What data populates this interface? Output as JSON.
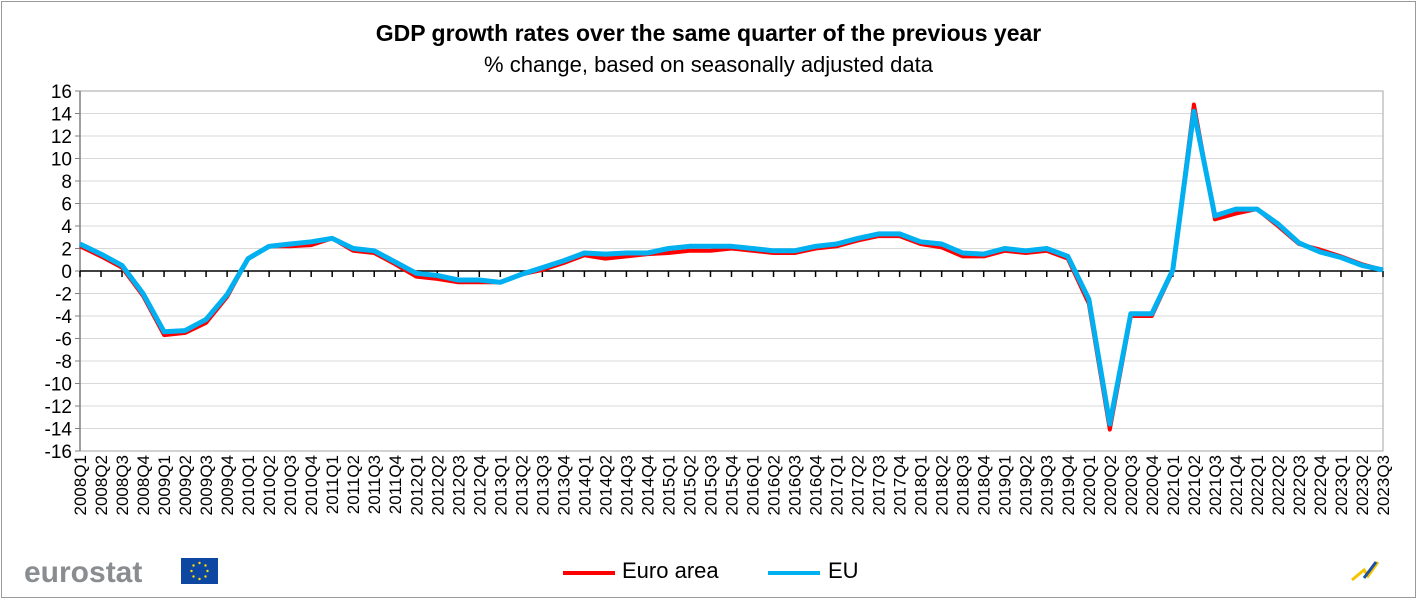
{
  "chart_data": {
    "type": "line",
    "title": "GDP growth rates over the same quarter of the previous year",
    "subtitle": "% change, based on seasonally adjusted data",
    "xlabel": "",
    "ylabel": "",
    "ylim": [
      -16,
      16
    ],
    "yticks": [
      "16",
      "14",
      "12",
      "10",
      "8",
      "6",
      "4",
      "2",
      "0",
      "-2",
      "-4",
      "-6",
      "-8",
      "-10",
      "-12",
      "-14",
      "-16"
    ],
    "grid": true,
    "legend_position": "bottom",
    "x": [
      "2008Q1",
      "2008Q2",
      "2008Q3",
      "2008Q4",
      "2009Q1",
      "2009Q2",
      "2009Q3",
      "2009Q4",
      "2010Q1",
      "2010Q2",
      "2010Q3",
      "2010Q4",
      "2011Q1",
      "2011Q2",
      "2011Q3",
      "2011Q4",
      "2012Q1",
      "2012Q2",
      "2012Q3",
      "2012Q4",
      "2013Q1",
      "2013Q2",
      "2013Q3",
      "2013Q4",
      "2014Q1",
      "2014Q2",
      "2014Q3",
      "2014Q4",
      "2015Q1",
      "2015Q2",
      "2015Q3",
      "2015Q4",
      "2016Q1",
      "2016Q2",
      "2016Q3",
      "2016Q4",
      "2017Q1",
      "2017Q2",
      "2017Q3",
      "2017Q4",
      "2018Q1",
      "2018Q2",
      "2018Q3",
      "2018Q4",
      "2019Q1",
      "2019Q2",
      "2019Q3",
      "2019Q4",
      "2020Q1",
      "2020Q2",
      "2020Q3",
      "2020Q4",
      "2021Q1",
      "2021Q2",
      "2021Q3",
      "2021Q4",
      "2022Q1",
      "2022Q2",
      "2022Q3",
      "2022Q4",
      "2023Q1",
      "2023Q2",
      "2023Q3"
    ],
    "series": [
      {
        "name": "Euro area",
        "color": "#ff0000",
        "values": [
          2.2,
          1.3,
          0.3,
          -2.2,
          -5.7,
          -5.5,
          -4.6,
          -2.3,
          1.1,
          2.2,
          2.2,
          2.3,
          2.9,
          1.8,
          1.6,
          0.6,
          -0.5,
          -0.7,
          -1.0,
          -1.0,
          -1.0,
          -0.3,
          0.1,
          0.7,
          1.4,
          1.1,
          1.3,
          1.5,
          1.6,
          1.8,
          1.8,
          2.0,
          1.8,
          1.6,
          1.6,
          2.0,
          2.2,
          2.7,
          3.1,
          3.1,
          2.4,
          2.1,
          1.3,
          1.3,
          1.8,
          1.6,
          1.8,
          1.1,
          -2.9,
          -14.1,
          -4.0,
          -4.0,
          0.0,
          14.8,
          4.6,
          5.1,
          5.5,
          4.0,
          2.4,
          1.9,
          1.3,
          0.6,
          0.1
        ]
      },
      {
        "name": "EU",
        "color": "#00b0f0",
        "values": [
          2.4,
          1.5,
          0.5,
          -2.0,
          -5.4,
          -5.3,
          -4.3,
          -2.1,
          1.1,
          2.2,
          2.4,
          2.6,
          2.9,
          2.0,
          1.8,
          0.8,
          -0.2,
          -0.4,
          -0.8,
          -0.8,
          -1.0,
          -0.3,
          0.3,
          0.9,
          1.6,
          1.5,
          1.6,
          1.6,
          2.0,
          2.2,
          2.2,
          2.2,
          2.0,
          1.8,
          1.8,
          2.2,
          2.4,
          2.9,
          3.3,
          3.3,
          2.6,
          2.4,
          1.6,
          1.5,
          2.0,
          1.8,
          2.0,
          1.3,
          -2.5,
          -13.6,
          -3.8,
          -3.8,
          0.1,
          14.2,
          4.9,
          5.5,
          5.5,
          4.2,
          2.5,
          1.7,
          1.2,
          0.5,
          0.1
        ]
      }
    ]
  },
  "branding": {
    "logo_text": "eurostat"
  }
}
